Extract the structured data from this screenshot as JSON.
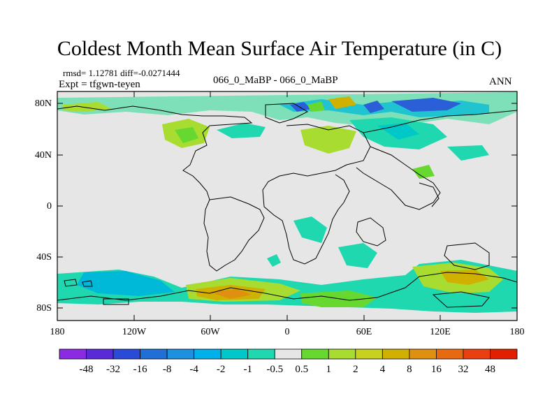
{
  "title": "Coldest Month Mean Surface Air Temperature (in C)",
  "stats": {
    "rmsd_label": "rmsd=",
    "rmsd": "1.12781",
    "diff_label": "diff=",
    "diff": "-0.0271444"
  },
  "expt": "Expt = tfgwn-teyen",
  "comparison": "066_0_MaBP - 066_0_MaBP",
  "season": "ANN",
  "lat_labels": [
    "80N",
    "40N",
    "0",
    "40S",
    "80S"
  ],
  "lon_labels": [
    "180",
    "120W",
    "60W",
    "0",
    "60E",
    "120E",
    "180"
  ],
  "colorbar": {
    "colors": [
      "#8a2be2",
      "#5a2ad8",
      "#2a4bd8",
      "#1f6fd6",
      "#1e90e0",
      "#00b0e8",
      "#00c8c8",
      "#20d8b0",
      "#e6e6e6",
      "#66d830",
      "#a8dc30",
      "#c8d020",
      "#d0b000",
      "#e09010",
      "#e86a10",
      "#e84010",
      "#e02000"
    ],
    "labels": [
      "-48",
      "-32",
      "-16",
      "-8",
      "-4",
      "-2",
      "-1",
      "-0.5",
      "0.5",
      "1",
      "2",
      "4",
      "8",
      "16",
      "32",
      "48"
    ]
  },
  "legend_colors": {
    "ocean_bg": "#e6e6e6",
    "coast": "#000000"
  }
}
